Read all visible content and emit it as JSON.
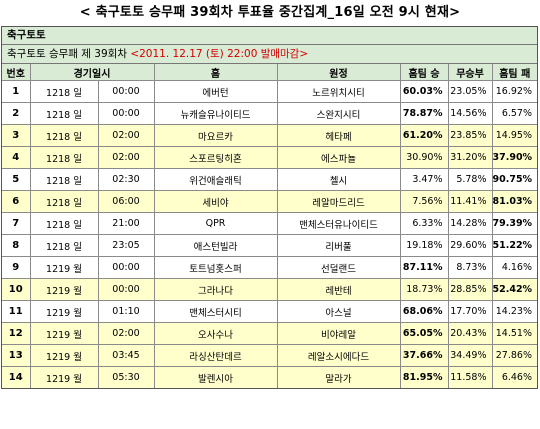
{
  "title": "< 축구토토 승무패 39회차 투표율 중간집계_16일 오전 9시 현재>",
  "section_label": "축구토토",
  "round_label": "축구토토 승무패 제 39회차",
  "deadline": "<2011. 12.17 (토) 22:00 발매마감>",
  "headers": [
    "번호",
    "경기일시",
    "",
    "홈",
    "원정",
    "홈팀 승",
    "무승부",
    "홈팀 패"
  ],
  "rows": [
    {
      "no": "1",
      "date": "1218 일",
      "time": "00:00",
      "home": "에버턴",
      "away": "노르위치시티",
      "win": "60.03%",
      "draw": "23.05%",
      "loss": "16.92%",
      "hl": false,
      "bold": "win"
    },
    {
      "no": "2",
      "date": "1218 일",
      "time": "00:00",
      "home": "뉴캐슬유나이티드",
      "away": "스완지시티",
      "win": "78.87%",
      "draw": "14.56%",
      "loss": "6.57%",
      "hl": false,
      "bold": "win"
    },
    {
      "no": "3",
      "date": "1218 일",
      "time": "02:00",
      "home": "마요르카",
      "away": "헤타페",
      "win": "61.20%",
      "draw": "23.85%",
      "loss": "14.95%",
      "hl": true,
      "bold": "win"
    },
    {
      "no": "4",
      "date": "1218 일",
      "time": "02:00",
      "home": "스포르팅히혼",
      "away": "에스파뇰",
      "win": "30.90%",
      "draw": "31.20%",
      "loss": "37.90%",
      "hl": true,
      "bold": "loss"
    },
    {
      "no": "5",
      "date": "1218 일",
      "time": "02:30",
      "home": "위건애슬래틱",
      "away": "첼시",
      "win": "3.47%",
      "draw": "5.78%",
      "loss": "90.75%",
      "hl": false,
      "bold": "loss"
    },
    {
      "no": "6",
      "date": "1218 일",
      "time": "06:00",
      "home": "세비야",
      "away": "레알마드리드",
      "win": "7.56%",
      "draw": "11.41%",
      "loss": "81.03%",
      "hl": true,
      "bold": "loss"
    },
    {
      "no": "7",
      "date": "1218 일",
      "time": "21:00",
      "home": "QPR",
      "away": "맨체스터유나이티드",
      "win": "6.33%",
      "draw": "14.28%",
      "loss": "79.39%",
      "hl": false,
      "bold": "loss"
    },
    {
      "no": "8",
      "date": "1218 일",
      "time": "23:05",
      "home": "애스턴빌라",
      "away": "리버풀",
      "win": "19.18%",
      "draw": "29.60%",
      "loss": "51.22%",
      "hl": false,
      "bold": "loss"
    },
    {
      "no": "9",
      "date": "1219 월",
      "time": "00:00",
      "home": "토트넘홋스퍼",
      "away": "선덜랜드",
      "win": "87.11%",
      "draw": "8.73%",
      "loss": "4.16%",
      "hl": false,
      "bold": "win"
    },
    {
      "no": "10",
      "date": "1219 월",
      "time": "00:00",
      "home": "그라나다",
      "away": "레반테",
      "win": "18.73%",
      "draw": "28.85%",
      "loss": "52.42%",
      "hl": true,
      "bold": "loss"
    },
    {
      "no": "11",
      "date": "1219 월",
      "time": "01:10",
      "home": "맨체스터시티",
      "away": "아스널",
      "win": "68.06%",
      "draw": "17.70%",
      "loss": "14.23%",
      "hl": false,
      "bold": "win"
    },
    {
      "no": "12",
      "date": "1219 월",
      "time": "02:00",
      "home": "오사수나",
      "away": "비야레알",
      "win": "65.05%",
      "draw": "20.43%",
      "loss": "14.51%",
      "hl": true,
      "bold": "win"
    },
    {
      "no": "13",
      "date": "1219 월",
      "time": "03:45",
      "home": "라싱산탄데르",
      "away": "레알소시에다드",
      "win": "37.66%",
      "draw": "34.49%",
      "loss": "27.86%",
      "hl": true,
      "bold": "win"
    },
    {
      "no": "14",
      "date": "1219 월",
      "time": "05:30",
      "home": "발렌시아",
      "away": "말라가",
      "win": "81.95%",
      "draw": "11.58%",
      "loss": "6.46%",
      "hl": true,
      "bold": "win"
    }
  ]
}
